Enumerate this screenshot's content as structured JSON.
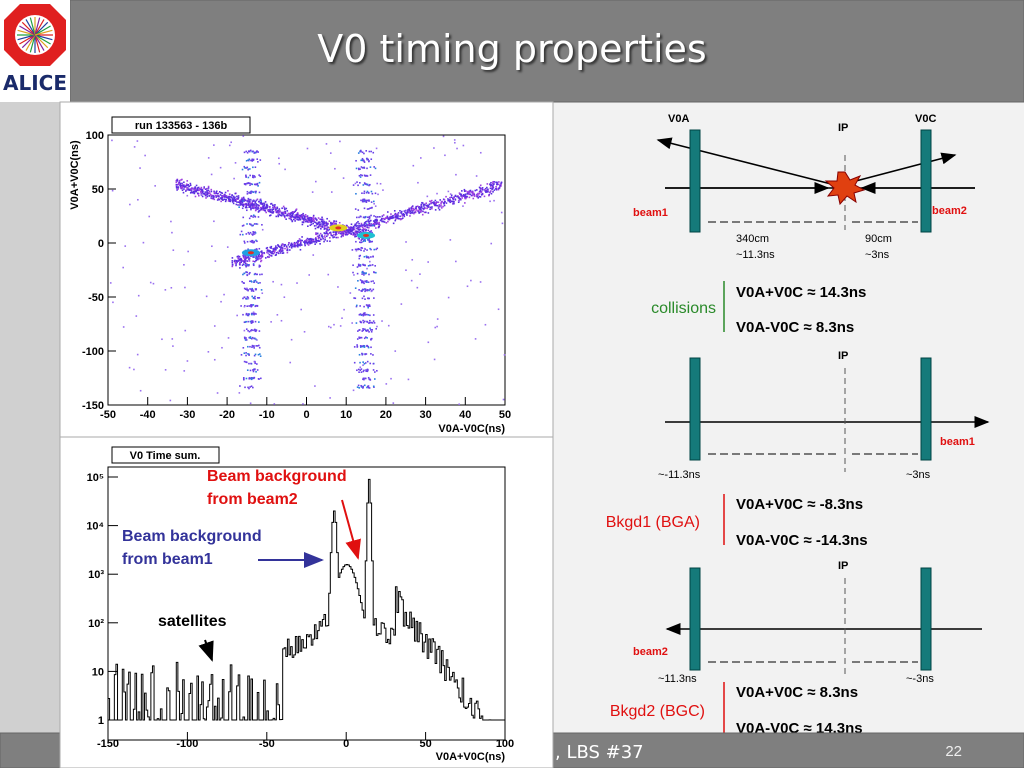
{
  "header": {
    "title": "V0 timing properties",
    "logo": "ALICE"
  },
  "footer": {
    "text": ", LBS #37",
    "page": "22"
  },
  "plots": [
    {
      "label": "run 133563 - 136b",
      "ylabel": "V0A+V0C(ns)",
      "xlabel": "V0A-V0C(ns)",
      "xticks": [
        -50,
        -40,
        -30,
        -20,
        -10,
        0,
        10,
        20,
        30,
        40,
        50
      ],
      "yticks": [
        100,
        50,
        0,
        -50,
        -100,
        -150
      ]
    },
    {
      "label": "V0 Time sum.",
      "xlabel": "V0A+V0C(ns)",
      "xticks": [
        -150,
        -100,
        -50,
        0,
        50,
        100
      ],
      "yticks": [
        1,
        10,
        "10²",
        "10³",
        "10⁴",
        "10⁵"
      ]
    }
  ],
  "annotations": {
    "beam2": [
      "Beam background",
      "from beam2"
    ],
    "beam1": [
      "Beam background",
      "from beam1"
    ],
    "satellites": "satellites"
  },
  "diagrams": [
    {
      "left": "V0A",
      "ip": "IP",
      "right": "V0C",
      "beam_left": "beam1",
      "beam_right": "beam2",
      "dist_left": "340cm",
      "time_left": "~11.3ns",
      "dist_right": "90cm",
      "time_right": "~3ns",
      "case": "collisions",
      "sum": "V0A+V0C ≈ 14.3ns",
      "diff": "V0A-V0C ≈ 8.3ns"
    },
    {
      "ip": "IP",
      "beam": "beam1",
      "time_left": "~-11.3ns",
      "time_right": "~3ns",
      "case": "Bkgd1 (BGA)",
      "sum": "V0A+V0C ≈ -8.3ns",
      "diff": "V0A-V0C ≈ -14.3ns"
    },
    {
      "ip": "IP",
      "beam": "beam2",
      "time_left": "~11.3ns",
      "time_right": "~-3ns",
      "case": "Bkgd2 (BGC)",
      "sum": "V0A+V0C ≈ 8.3ns",
      "diff": "V0A-V0C ≈ 14.3ns"
    }
  ]
}
